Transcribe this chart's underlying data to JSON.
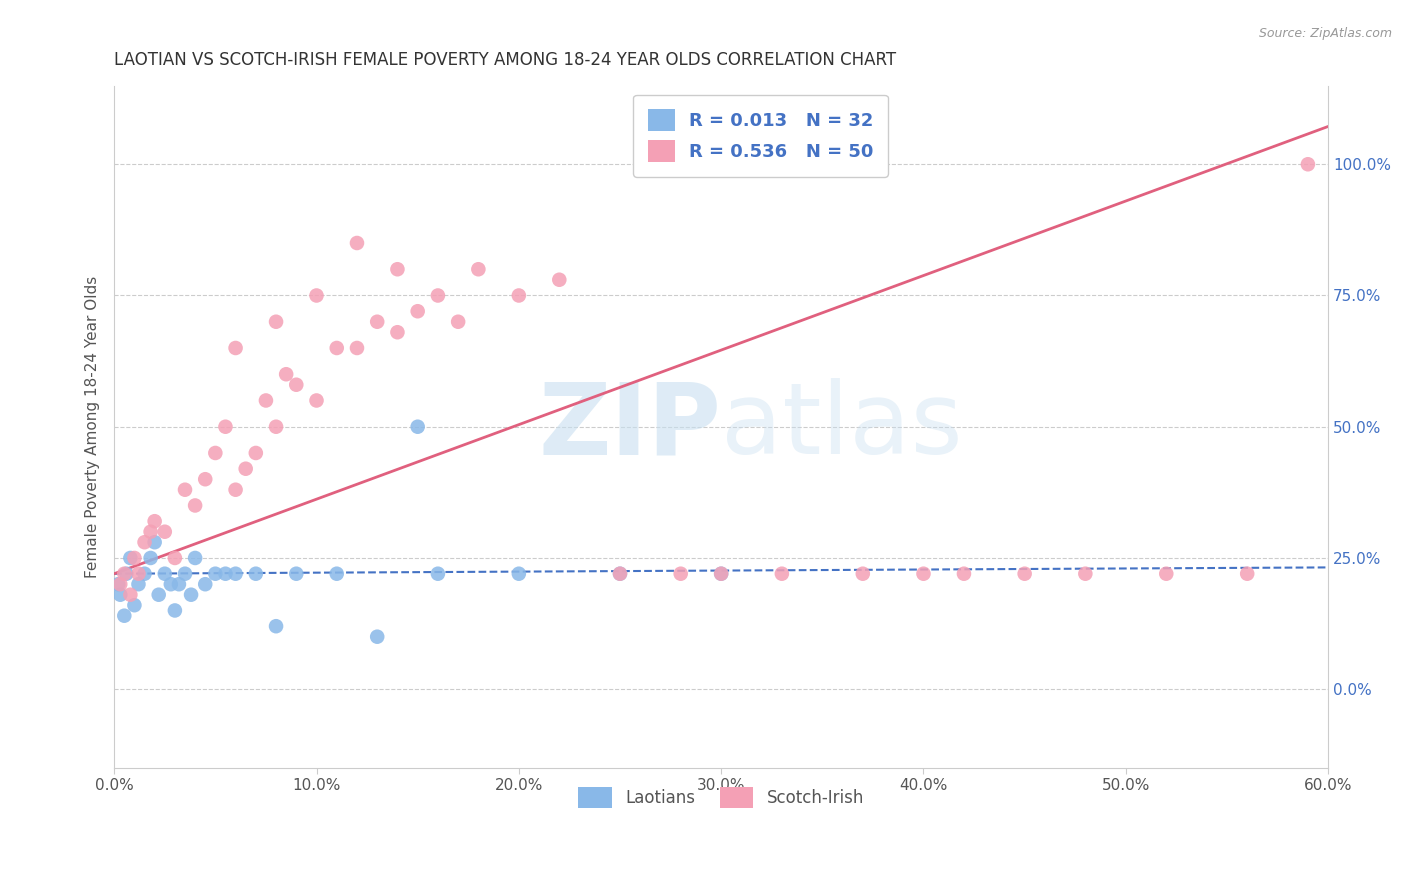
{
  "title": "LAOTIAN VS SCOTCH-IRISH FEMALE POVERTY AMONG 18-24 YEAR OLDS CORRELATION CHART",
  "source": "Source: ZipAtlas.com",
  "xlim": [
    0.0,
    60.0
  ],
  "ylim": [
    -15.0,
    115.0
  ],
  "y_tick_vals": [
    0,
    25,
    50,
    75,
    100
  ],
  "y_tick_labels": [
    "0.0%",
    "25.0%",
    "50.0%",
    "75.0%",
    "100.0%"
  ],
  "x_tick_vals": [
    0,
    10,
    20,
    30,
    40,
    50,
    60
  ],
  "x_tick_labels": [
    "0.0%",
    "10.0%",
    "20.0%",
    "30.0%",
    "40.0%",
    "50.0%",
    "60.0%"
  ],
  "laotian_color": "#89b8e8",
  "scotch_irish_color": "#f4a0b5",
  "laotian_line_color": "#4472c4",
  "scotch_irish_line_color": "#e0607e",
  "laotian_R": 0.013,
  "laotian_N": 32,
  "scotch_irish_R": 0.536,
  "scotch_irish_N": 50,
  "watermark_text": "ZIPatlas",
  "laotian_x": [
    0.2,
    0.3,
    0.5,
    0.6,
    0.8,
    1.0,
    1.2,
    1.5,
    1.8,
    2.0,
    2.2,
    2.5,
    2.8,
    3.0,
    3.2,
    3.5,
    3.8,
    4.0,
    4.5,
    5.0,
    5.5,
    6.0,
    7.0,
    8.0,
    9.0,
    11.0,
    13.0,
    15.0,
    16.0,
    20.0,
    25.0,
    30.0
  ],
  "laotian_y": [
    20.0,
    18.0,
    14.0,
    22.0,
    25.0,
    16.0,
    20.0,
    22.0,
    25.0,
    28.0,
    18.0,
    22.0,
    20.0,
    15.0,
    20.0,
    22.0,
    18.0,
    25.0,
    20.0,
    22.0,
    22.0,
    22.0,
    22.0,
    12.0,
    22.0,
    22.0,
    10.0,
    50.0,
    22.0,
    22.0,
    22.0,
    22.0
  ],
  "scotch_irish_x": [
    0.3,
    0.5,
    0.8,
    1.0,
    1.2,
    1.5,
    1.8,
    2.0,
    2.5,
    3.0,
    3.5,
    4.0,
    4.5,
    5.0,
    5.5,
    6.0,
    6.5,
    7.0,
    7.5,
    8.0,
    8.5,
    9.0,
    10.0,
    11.0,
    12.0,
    13.0,
    14.0,
    15.0,
    16.0,
    17.0,
    18.0,
    20.0,
    22.0,
    25.0,
    28.0,
    30.0,
    33.0,
    37.0,
    40.0,
    42.0,
    45.0,
    48.0,
    52.0,
    56.0,
    59.0,
    12.0,
    8.0,
    10.0,
    6.0,
    14.0
  ],
  "scotch_irish_y": [
    20.0,
    22.0,
    18.0,
    25.0,
    22.0,
    28.0,
    30.0,
    32.0,
    30.0,
    25.0,
    38.0,
    35.0,
    40.0,
    45.0,
    50.0,
    38.0,
    42.0,
    45.0,
    55.0,
    50.0,
    60.0,
    58.0,
    55.0,
    65.0,
    65.0,
    70.0,
    68.0,
    72.0,
    75.0,
    70.0,
    80.0,
    75.0,
    78.0,
    22.0,
    22.0,
    22.0,
    22.0,
    22.0,
    22.0,
    22.0,
    22.0,
    22.0,
    22.0,
    22.0,
    100.0,
    85.0,
    70.0,
    75.0,
    65.0,
    80.0
  ]
}
